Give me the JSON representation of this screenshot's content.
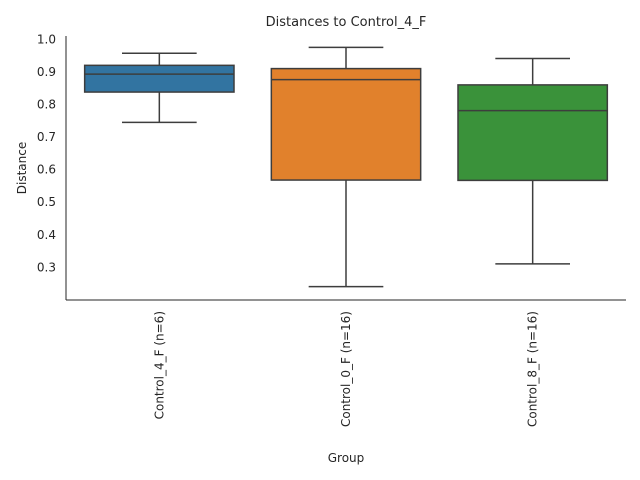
{
  "chart_data": {
    "type": "box",
    "title": "Distances to Control_4_F",
    "xlabel": "Group",
    "ylabel": "Distance",
    "ylim": [
      0.2,
      1.01
    ],
    "yticks": [
      0.3,
      0.4,
      0.5,
      0.6,
      0.7,
      0.8,
      0.9,
      1.0
    ],
    "ytick_labels": [
      "0.3",
      "0.4",
      "0.5",
      "0.6",
      "0.7",
      "0.8",
      "0.9",
      "1.0"
    ],
    "grid": false,
    "categories": [
      "Control_4_F (n=6)",
      "Control_0_F (n=16)",
      "Control_8_F (n=16)"
    ],
    "boxes": [
      {
        "whisker_low": 0.745,
        "q1": 0.838,
        "median": 0.893,
        "q3": 0.92,
        "whisker_high": 0.957,
        "color": "#3274a1"
      },
      {
        "whisker_low": 0.241,
        "q1": 0.568,
        "median": 0.876,
        "q3": 0.91,
        "whisker_high": 0.975,
        "color": "#e1812c"
      },
      {
        "whisker_low": 0.311,
        "q1": 0.567,
        "median": 0.781,
        "q3": 0.86,
        "whisker_high": 0.941,
        "color": "#3a923a"
      }
    ],
    "edge_color": "#3d3d3d"
  }
}
